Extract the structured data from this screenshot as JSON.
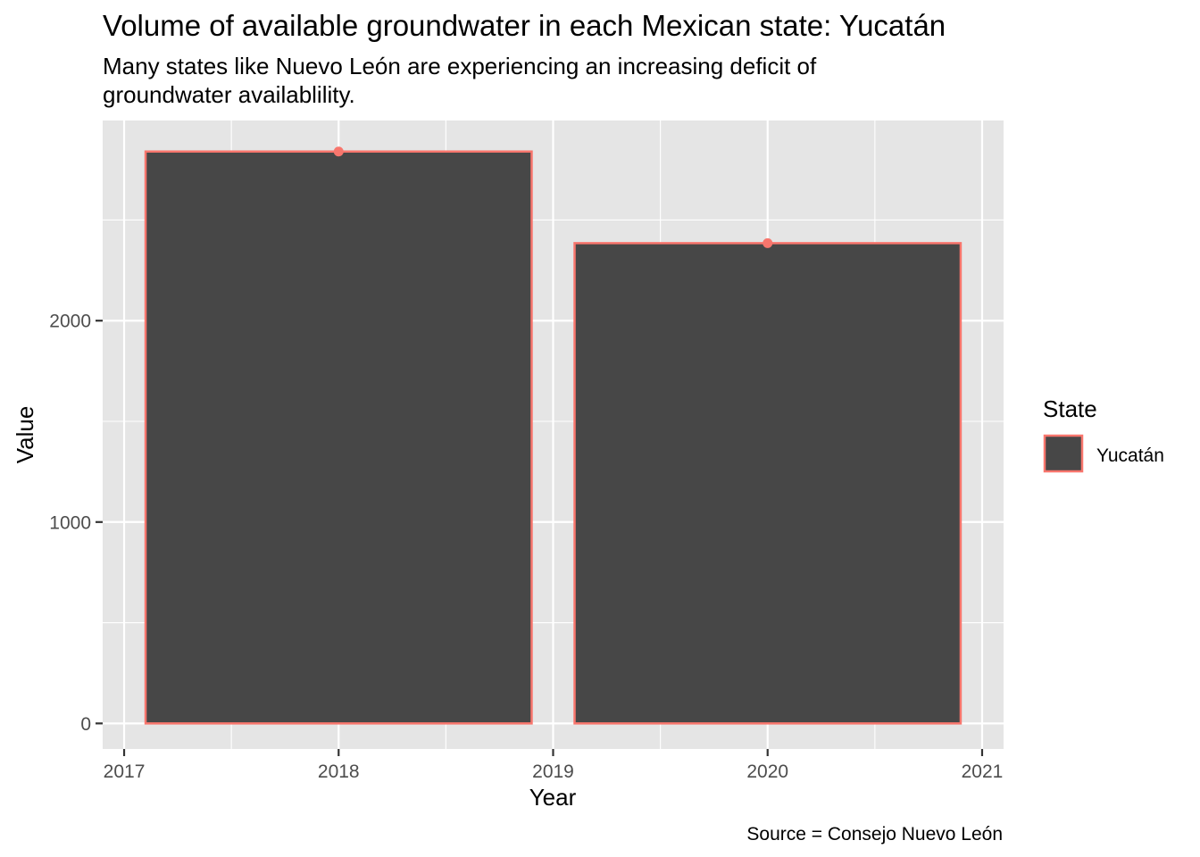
{
  "chart_data": {
    "type": "bar",
    "title": "Volume of available groundwater in each Mexican state: Yucatán",
    "subtitle": [
      "Many states like Nuevo León are experiencing an increasing deficit of",
      "groundwater availablility."
    ],
    "caption": "Source = Consejo Nuevo León",
    "xlabel": "Year",
    "ylabel": "Value",
    "x": [
      2018,
      2020
    ],
    "values": [
      2840,
      2385
    ],
    "series": [
      {
        "name": "Yucatán",
        "x": [
          2018,
          2020
        ],
        "values": [
          2840,
          2385
        ]
      }
    ],
    "bar_width_years": 1.8,
    "xlim": [
      2016.9,
      2021.1
    ],
    "ylim": [
      -127,
      2994
    ],
    "x_ticks": [
      2017,
      2018,
      2019,
      2020,
      2021
    ],
    "x_tick_labels": [
      "2017",
      "2018",
      "2019",
      "2020",
      "2021"
    ],
    "y_ticks": [
      0,
      1000,
      2000
    ],
    "y_tick_labels": [
      "0",
      "1000",
      "2000"
    ],
    "y_minor_ticks": [
      500,
      1500,
      2500
    ],
    "x_minor_ticks": [
      2017.5,
      2018.5,
      2019.5,
      2020.5
    ],
    "grid": true,
    "legend": {
      "title": "State",
      "entries": [
        "Yucatán"
      ],
      "position": "right"
    },
    "colors": {
      "bar_fill": "#474747",
      "bar_outline": "#F8766D",
      "panel_background": "#E5E5E5",
      "grid": "#FFFFFF"
    }
  }
}
